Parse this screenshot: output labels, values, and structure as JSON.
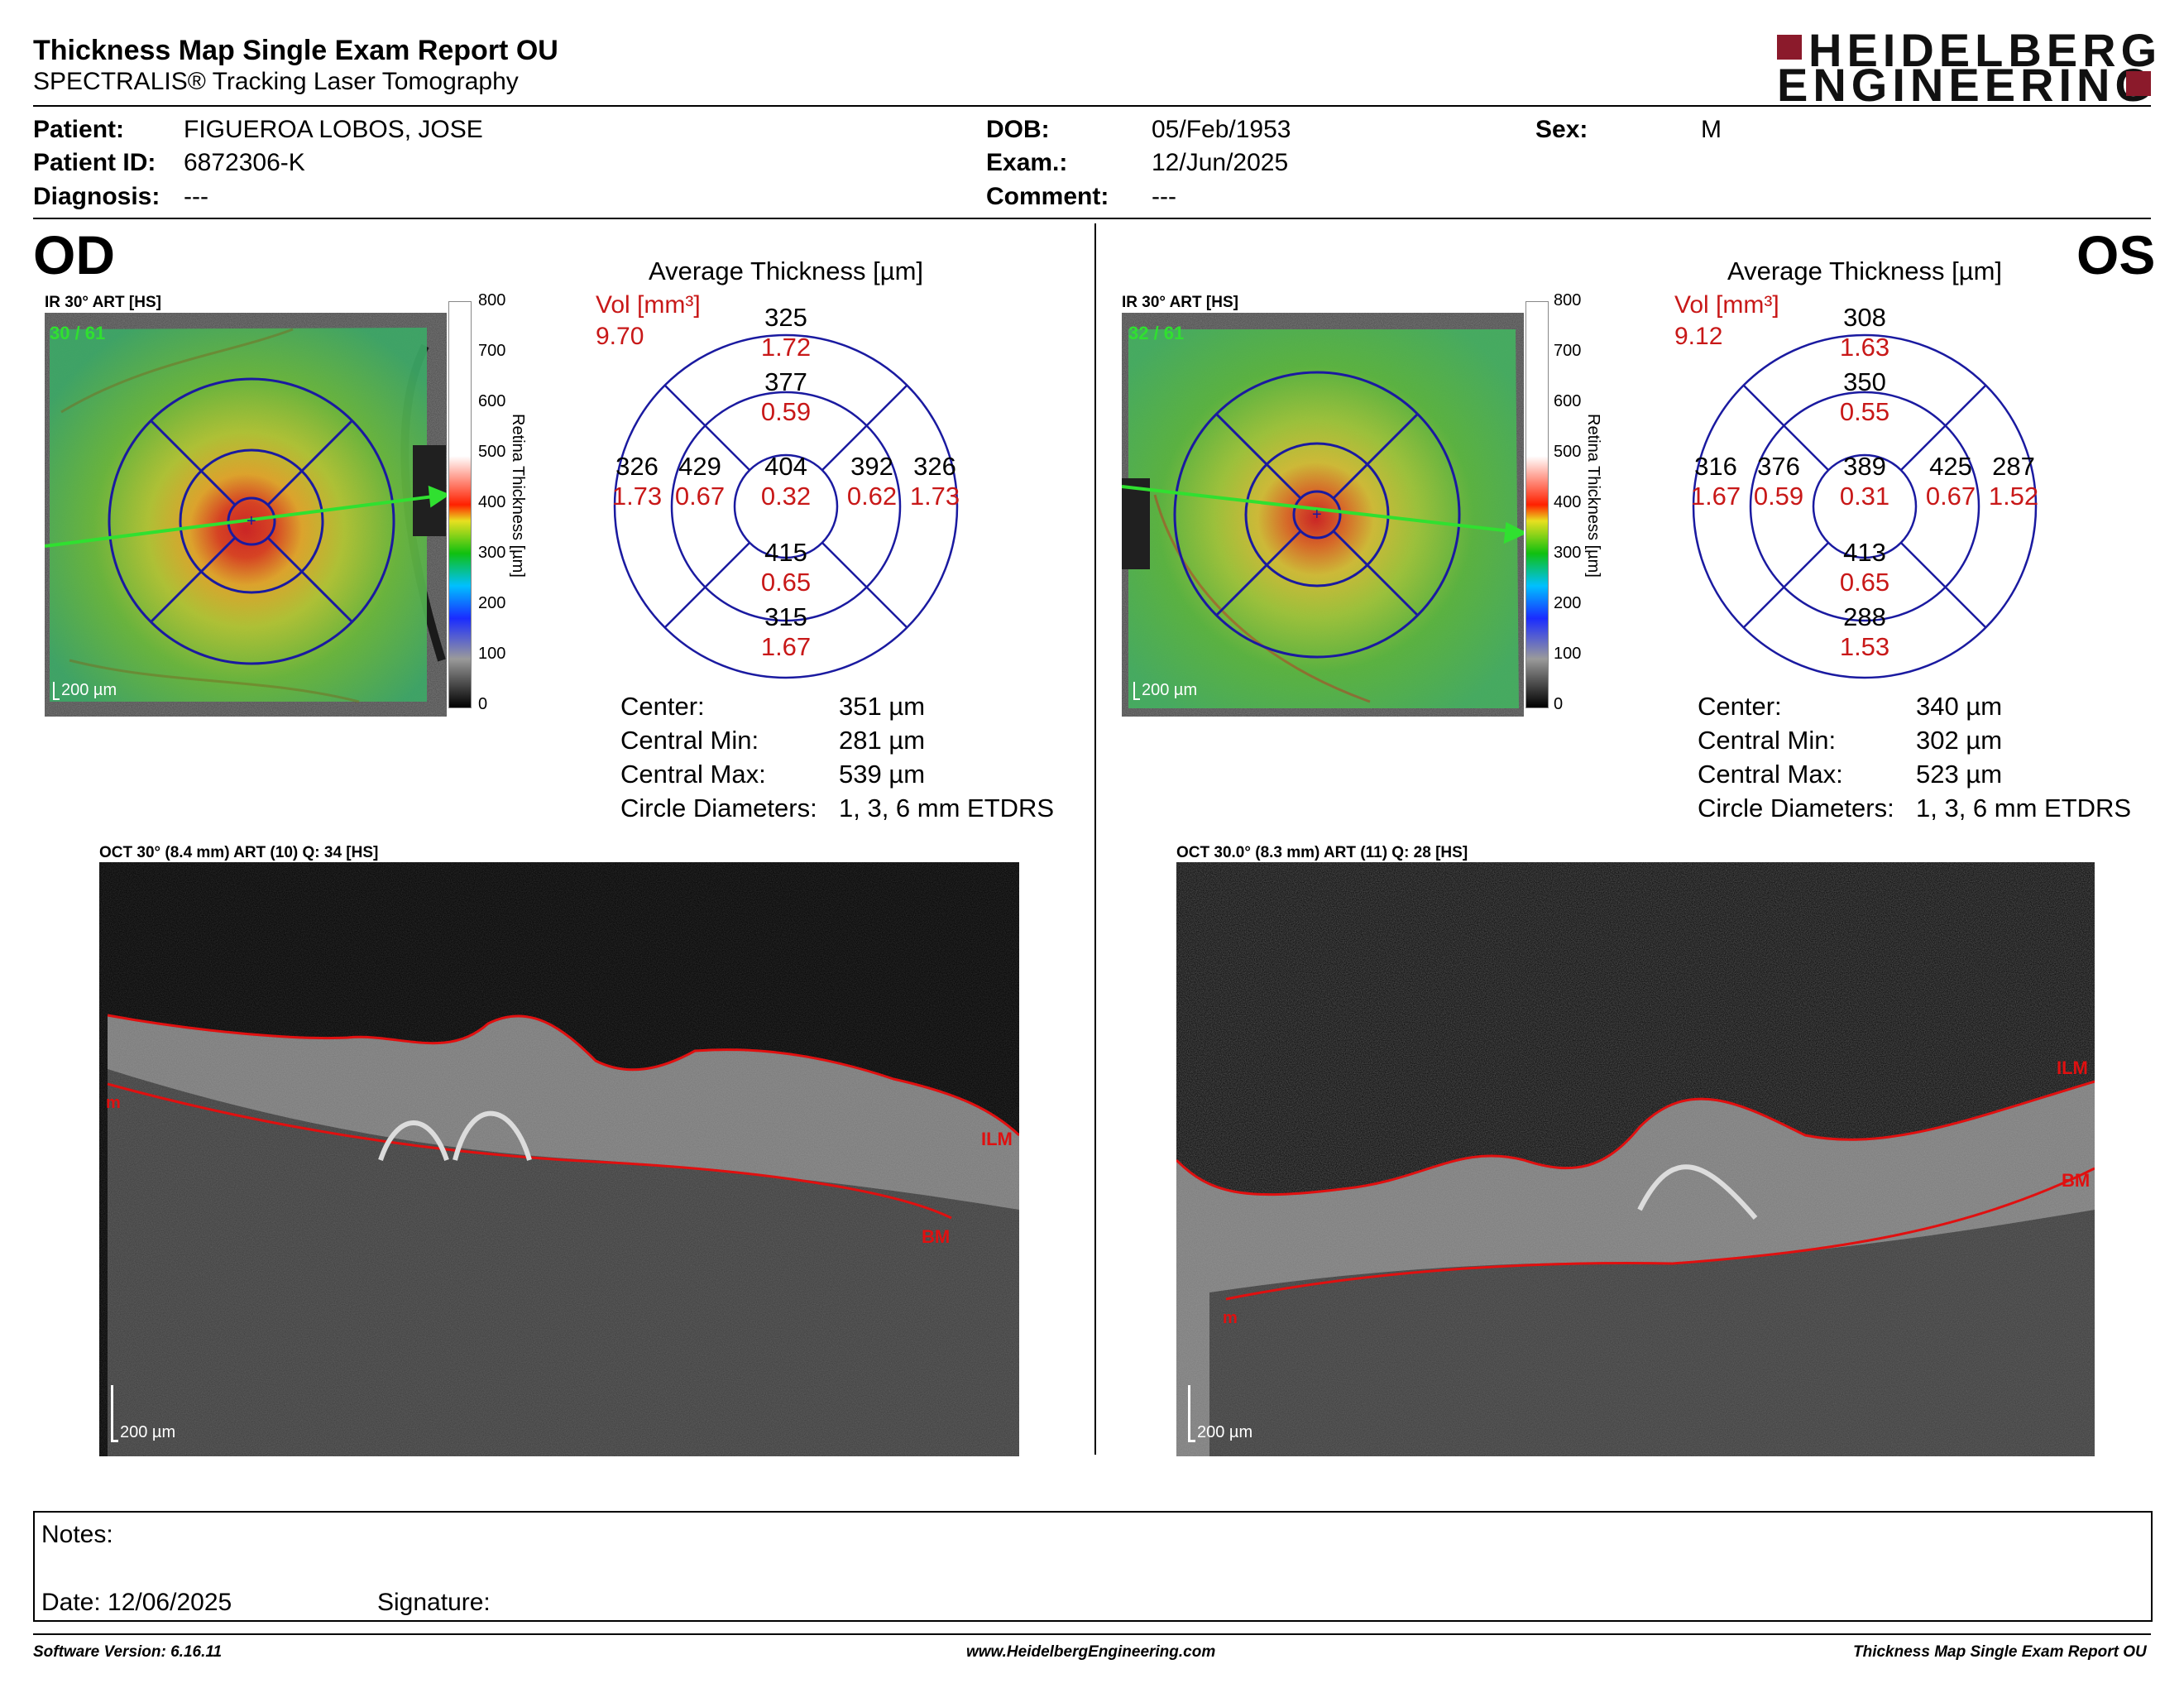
{
  "header": {
    "title": "Thickness Map Single Exam Report OU",
    "subtitle": "SPECTRALIS® Tracking Laser Tomography",
    "logo_line1": "HEIDELBERG",
    "logo_line2": "ENGINEERING"
  },
  "patient": {
    "patient_label": "Patient:",
    "patient_value": "FIGUEROA LOBOS, JOSE",
    "id_label": "Patient ID:",
    "id_value": "6872306-K",
    "diagnosis_label": "Diagnosis:",
    "diagnosis_value": "---",
    "dob_label": "DOB:",
    "dob_value": "05/Feb/1953",
    "exam_label": "Exam.:",
    "exam_value": "12/Jun/2025",
    "comment_label": "Comment:",
    "comment_value": "---",
    "sex_label": "Sex:",
    "sex_value": "M"
  },
  "scale": {
    "ticks": [
      "800",
      "700",
      "600",
      "500",
      "400",
      "300",
      "200",
      "100",
      "0"
    ],
    "title": "Retina  Thickness [µm]"
  },
  "od": {
    "eye": "OD",
    "ir_label": "IR 30° ART [HS]",
    "ir_counter": "30 / 61",
    "ir_scalebar": "200 µm",
    "avg_title": "Average Thickness [µm]",
    "vol_label": "Vol [mm³]",
    "vol_value": "9.70",
    "sectors": {
      "outer_top": {
        "t": "325",
        "v": "1.72"
      },
      "inner_top": {
        "t": "377",
        "v": "0.59"
      },
      "outer_left": {
        "t": "326",
        "v": "1.73"
      },
      "inner_left": {
        "t": "429",
        "v": "0.67"
      },
      "center": {
        "t": "404",
        "v": "0.32"
      },
      "inner_right": {
        "t": "392",
        "v": "0.62"
      },
      "outer_right": {
        "t": "326",
        "v": "1.73"
      },
      "inner_bottom": {
        "t": "415",
        "v": "0.65"
      },
      "outer_bottom": {
        "t": "315",
        "v": "1.67"
      }
    },
    "stats": {
      "center_label": "Center:",
      "center_value": "351 µm",
      "min_label": "Central Min:",
      "min_value": "281 µm",
      "max_label": "Central Max:",
      "max_value": "539 µm",
      "circ_label": "Circle Diameters:",
      "circ_value": "1, 3, 6 mm ETDRS"
    },
    "oct_label": "OCT 30° (8.4 mm) ART (10) Q: 34 [HS]",
    "oct_scalebar": "200 µm",
    "ilm": "ILM",
    "bm": "BM",
    "m": "m"
  },
  "os": {
    "eye": "OS",
    "ir_label": "IR 30° ART [HS]",
    "ir_counter": "32 / 61",
    "ir_scalebar": "200 µm",
    "avg_title": "Average Thickness [µm]",
    "vol_label": "Vol [mm³]",
    "vol_value": "9.12",
    "sectors": {
      "outer_top": {
        "t": "308",
        "v": "1.63"
      },
      "inner_top": {
        "t": "350",
        "v": "0.55"
      },
      "outer_left": {
        "t": "316",
        "v": "1.67"
      },
      "inner_left": {
        "t": "376",
        "v": "0.59"
      },
      "center": {
        "t": "389",
        "v": "0.31"
      },
      "inner_right": {
        "t": "425",
        "v": "0.67"
      },
      "outer_right": {
        "t": "287",
        "v": "1.52"
      },
      "inner_bottom": {
        "t": "413",
        "v": "0.65"
      },
      "outer_bottom": {
        "t": "288",
        "v": "1.53"
      }
    },
    "stats": {
      "center_label": "Center:",
      "center_value": "340 µm",
      "min_label": "Central Min:",
      "min_value": "302 µm",
      "max_label": "Central Max:",
      "max_value": "523 µm",
      "circ_label": "Circle Diameters:",
      "circ_value": "1, 3, 6 mm ETDRS"
    },
    "oct_label": "OCT 30.0° (8.3 mm) ART (11) Q: 28 [HS]",
    "oct_scalebar": "200 µm",
    "ilm": "ILM",
    "bm": "BM",
    "m": "m"
  },
  "notes": {
    "notes_label": "Notes:",
    "date_label": "Date: 12/06/2025",
    "signature_label": "Signature:"
  },
  "footer": {
    "software": "Software Version: 6.16.11",
    "url": "www.HeidelbergEngineering.com",
    "report": "Thickness Map Single Exam Report OU"
  },
  "colors": {
    "accent_red": "#c81818",
    "logo_red": "#8b1a2b",
    "grid_blue": "#1a1aa0"
  }
}
